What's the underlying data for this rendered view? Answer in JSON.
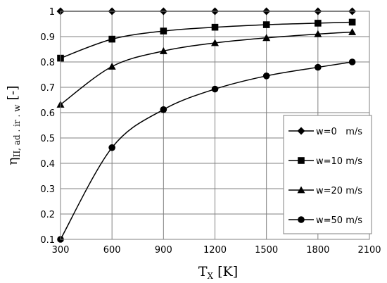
{
  "chart_data": {
    "type": "line",
    "title": "",
    "xlabel": {
      "main": "T",
      "sub": "X",
      "suffix": " [K]"
    },
    "ylabel": {
      "main": "η",
      "sub": "II, ad . ir . w",
      "suffix": " [-]"
    },
    "xlim": [
      300,
      2100
    ],
    "ylim": [
      0.1,
      1.0
    ],
    "xticks": [
      "300",
      "600",
      "900",
      "1200",
      "1500",
      "1800",
      "2100"
    ],
    "yticks": [
      "0.1",
      "0.2",
      "0.3",
      "0.4",
      "0.5",
      "0.6",
      "0.7",
      "0.8",
      "0.9",
      "1"
    ],
    "grid": true,
    "legend_position": "right",
    "series": [
      {
        "name": "w=0   m/s",
        "marker": "diamond",
        "x": [
          300,
          600,
          900,
          1200,
          1500,
          1800,
          2000
        ],
        "y": [
          1.0,
          1.0,
          1.0,
          1.0,
          1.0,
          1.0,
          1.0
        ]
      },
      {
        "name": "w=10 m/s",
        "marker": "square",
        "x": [
          300,
          600,
          900,
          1200,
          1500,
          1800,
          2000
        ],
        "y": [
          0.815,
          0.89,
          0.922,
          0.937,
          0.947,
          0.953,
          0.957
        ]
      },
      {
        "name": "w=20 m/s",
        "marker": "triangle",
        "x": [
          300,
          600,
          900,
          1200,
          1500,
          1800,
          2000
        ],
        "y": [
          0.632,
          0.782,
          0.843,
          0.875,
          0.895,
          0.91,
          0.918
        ]
      },
      {
        "name": "w=50 m/s",
        "marker": "circle",
        "x": [
          300,
          600,
          900,
          1200,
          1500,
          1800,
          2000
        ],
        "y": [
          0.1,
          0.462,
          0.612,
          0.693,
          0.745,
          0.779,
          0.8
        ]
      }
    ]
  }
}
